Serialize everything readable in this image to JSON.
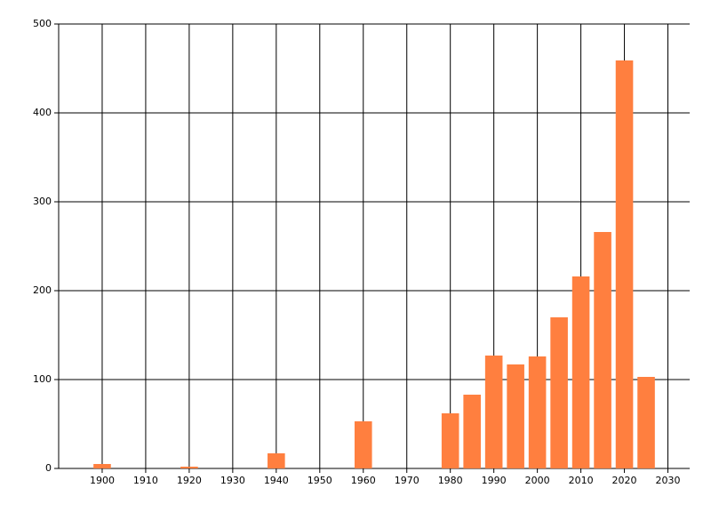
{
  "chart_data": {
    "type": "bar",
    "x": [
      1900,
      1920,
      1940,
      1960,
      1980,
      1985,
      1990,
      1995,
      2000,
      2005,
      2010,
      2015,
      2020,
      2025
    ],
    "values": [
      5,
      2,
      17,
      53,
      62,
      83,
      127,
      117,
      126,
      170,
      216,
      266,
      459,
      103
    ],
    "color": "#ff7f3f",
    "xlim": [
      1890,
      2035
    ],
    "xticks": [
      1900,
      1910,
      1920,
      1930,
      1940,
      1950,
      1960,
      1970,
      1980,
      1990,
      2000,
      2010,
      2020,
      2030
    ],
    "ylim": [
      0,
      500
    ],
    "yticks": [
      0,
      100,
      200,
      300,
      400,
      500
    ],
    "grid": true
  }
}
